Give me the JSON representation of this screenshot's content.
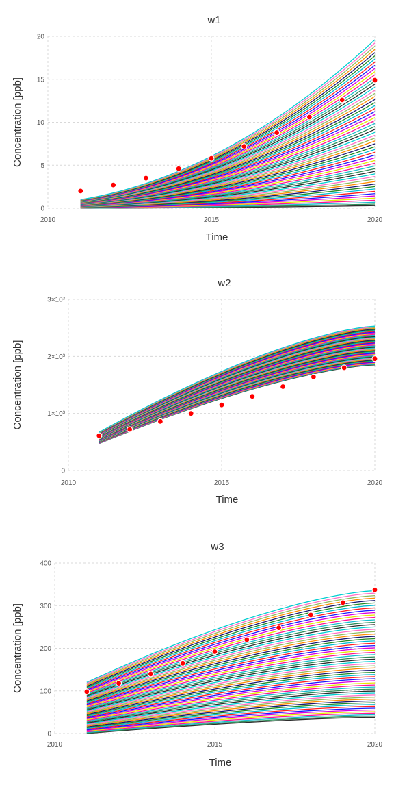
{
  "chart_data": [
    {
      "type": "line",
      "title": "w1",
      "xlabel": "Time",
      "ylabel": "Concentration [ppb]",
      "xlim": [
        2010,
        2020
      ],
      "ylim": [
        0,
        20
      ],
      "x_ticks": [
        2010,
        2015,
        2020
      ],
      "y_ticks": [
        0,
        5,
        10,
        15,
        20
      ],
      "y_tick_labels": [
        "0",
        "5",
        "10",
        "15",
        "20"
      ],
      "grid": true,
      "legend": "none",
      "ensemble": {
        "count": 60,
        "x_range": [
          2011,
          2020
        ],
        "start_range": [
          0.0,
          1.0
        ],
        "end_range": [
          0.3,
          19.6
        ],
        "curve_shape": "convex"
      },
      "observations": {
        "color": "#ff0000",
        "x": [
          2011,
          2012,
          2013,
          2014,
          2015,
          2016,
          2017,
          2018,
          2019,
          2020
        ],
        "y": [
          2.0,
          2.7,
          3.5,
          4.6,
          5.8,
          7.2,
          8.8,
          10.6,
          12.6,
          14.9
        ]
      }
    },
    {
      "type": "line",
      "title": "w2",
      "xlabel": "Time",
      "ylabel": "Concentration [ppb]",
      "xlim": [
        2010,
        2020
      ],
      "ylim": [
        0,
        3000
      ],
      "x_ticks": [
        2010,
        2015,
        2020
      ],
      "y_ticks": [
        0,
        1000,
        2000,
        3000
      ],
      "y_tick_labels": [
        "0",
        "1×10³",
        "2×10³",
        "3×10³"
      ],
      "grid": true,
      "legend": "none",
      "ensemble": {
        "count": 60,
        "x_range": [
          2011,
          2020
        ],
        "start_range": [
          470,
          670
        ],
        "end_range": [
          1850,
          2530
        ],
        "curve_shape": "concave"
      },
      "observations": {
        "color": "#ff0000",
        "x": [
          2011,
          2012,
          2013,
          2014,
          2015,
          2016,
          2017,
          2018,
          2019,
          2020
        ],
        "y": [
          610,
          720,
          860,
          1000,
          1150,
          1300,
          1470,
          1640,
          1800,
          1960
        ]
      }
    },
    {
      "type": "line",
      "title": "w3",
      "xlabel": "Time",
      "ylabel": "Concentration [ppb]",
      "xlim": [
        2010,
        2020
      ],
      "ylim": [
        0,
        400
      ],
      "x_ticks": [
        2010,
        2015,
        2020
      ],
      "y_ticks": [
        0,
        100,
        200,
        300,
        400
      ],
      "y_tick_labels": [
        "0",
        "100",
        "200",
        "300",
        "400"
      ],
      "grid": true,
      "legend": "none",
      "ensemble": {
        "count": 60,
        "x_range": [
          2011,
          2020
        ],
        "start_range": [
          0,
          120
        ],
        "end_range": [
          38,
          335
        ],
        "curve_shape": "concave"
      },
      "observations": {
        "color": "#ff0000",
        "x": [
          2011,
          2012,
          2013,
          2014,
          2015,
          2016,
          2017,
          2018,
          2019,
          2020
        ],
        "y": [
          98,
          118,
          140,
          165,
          192,
          220,
          248,
          278,
          307,
          337
        ]
      }
    }
  ],
  "palette": [
    "#2d2d2d",
    "#2e8b57",
    "#17becf",
    "#ff1493",
    "#e6e600",
    "#dd00dd",
    "#1a1aff",
    "#ff2020",
    "#00bcd4",
    "#228b22",
    "#191970",
    "#ff8c00",
    "#8fbc5f",
    "#ff6ec7",
    "#00ced1"
  ]
}
